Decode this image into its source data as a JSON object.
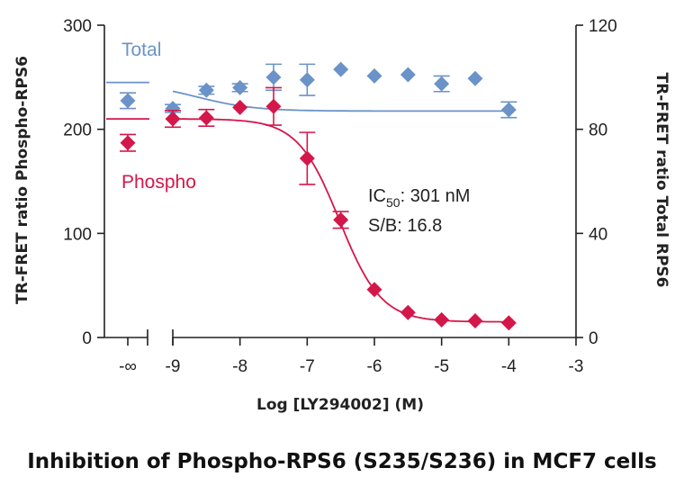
{
  "chart_data": {
    "type": "scatter",
    "title": "",
    "xlabel": "Log [LY294002] (M)",
    "ylabel_left": "TR-FRET ratio Phospho-RPS6",
    "ylabel_right": "TR-FRET ratio Total RPS6",
    "x_ticks": [
      "-∞",
      "-9",
      "-8",
      "-7",
      "-6",
      "-5",
      "-4",
      "-3"
    ],
    "xlim": [
      -9,
      -3
    ],
    "ylim_left": [
      0,
      300
    ],
    "ylim_right": [
      0,
      120
    ],
    "y_ticks_left": [
      "0",
      "100",
      "200",
      "300"
    ],
    "y_ticks_right": [
      "0",
      "40",
      "80",
      "120"
    ],
    "grid": false,
    "axis_break": true,
    "series": [
      {
        "name": "Total",
        "axis": "right",
        "color": "#6b93c8",
        "marker": "diamond",
        "control_point": {
          "x": "-∞",
          "y": 91,
          "err": 3
        },
        "x": [
          -9,
          -8.5,
          -8,
          -7.5,
          -7,
          -6.5,
          -6,
          -5.5,
          -5,
          -4.5,
          -4
        ],
        "y": [
          88,
          95,
          96,
          100,
          99,
          103,
          100.5,
          101,
          97.5,
          99.5,
          87.5
        ],
        "err": [
          1.5,
          1.5,
          1.5,
          5,
          6,
          0,
          0,
          0,
          3,
          0,
          3
        ],
        "fit_bottom": 87,
        "fit_top": 98,
        "fit_logec50": -8.65
      },
      {
        "name": "Phospho",
        "axis": "left",
        "color": "#d4174a",
        "marker": "diamond",
        "control_point": {
          "x": "-∞",
          "y": 187,
          "err": 8
        },
        "x": [
          -9,
          -8.5,
          -8,
          -7.5,
          -7,
          -6.5,
          -6,
          -5.5,
          -5,
          -4.5,
          -4
        ],
        "y": [
          210,
          211,
          221,
          222,
          172,
          113,
          46,
          24,
          17,
          16,
          14
        ],
        "err": [
          8,
          8,
          0,
          18,
          25,
          8,
          0,
          0,
          0,
          0,
          0
        ],
        "fit_bottom": 15,
        "fit_top": 210,
        "fit_logec50": -6.52,
        "fit_hill": 1.4
      }
    ],
    "annotations": {
      "ic50_prefix": "IC",
      "ic50_sub": "50",
      "ic50_value": ": 301 nM",
      "sb": "S/B: 16.8"
    }
  },
  "caption": "Inhibition of Phospho-RPS6 (S235/S236) in MCF7 cells"
}
